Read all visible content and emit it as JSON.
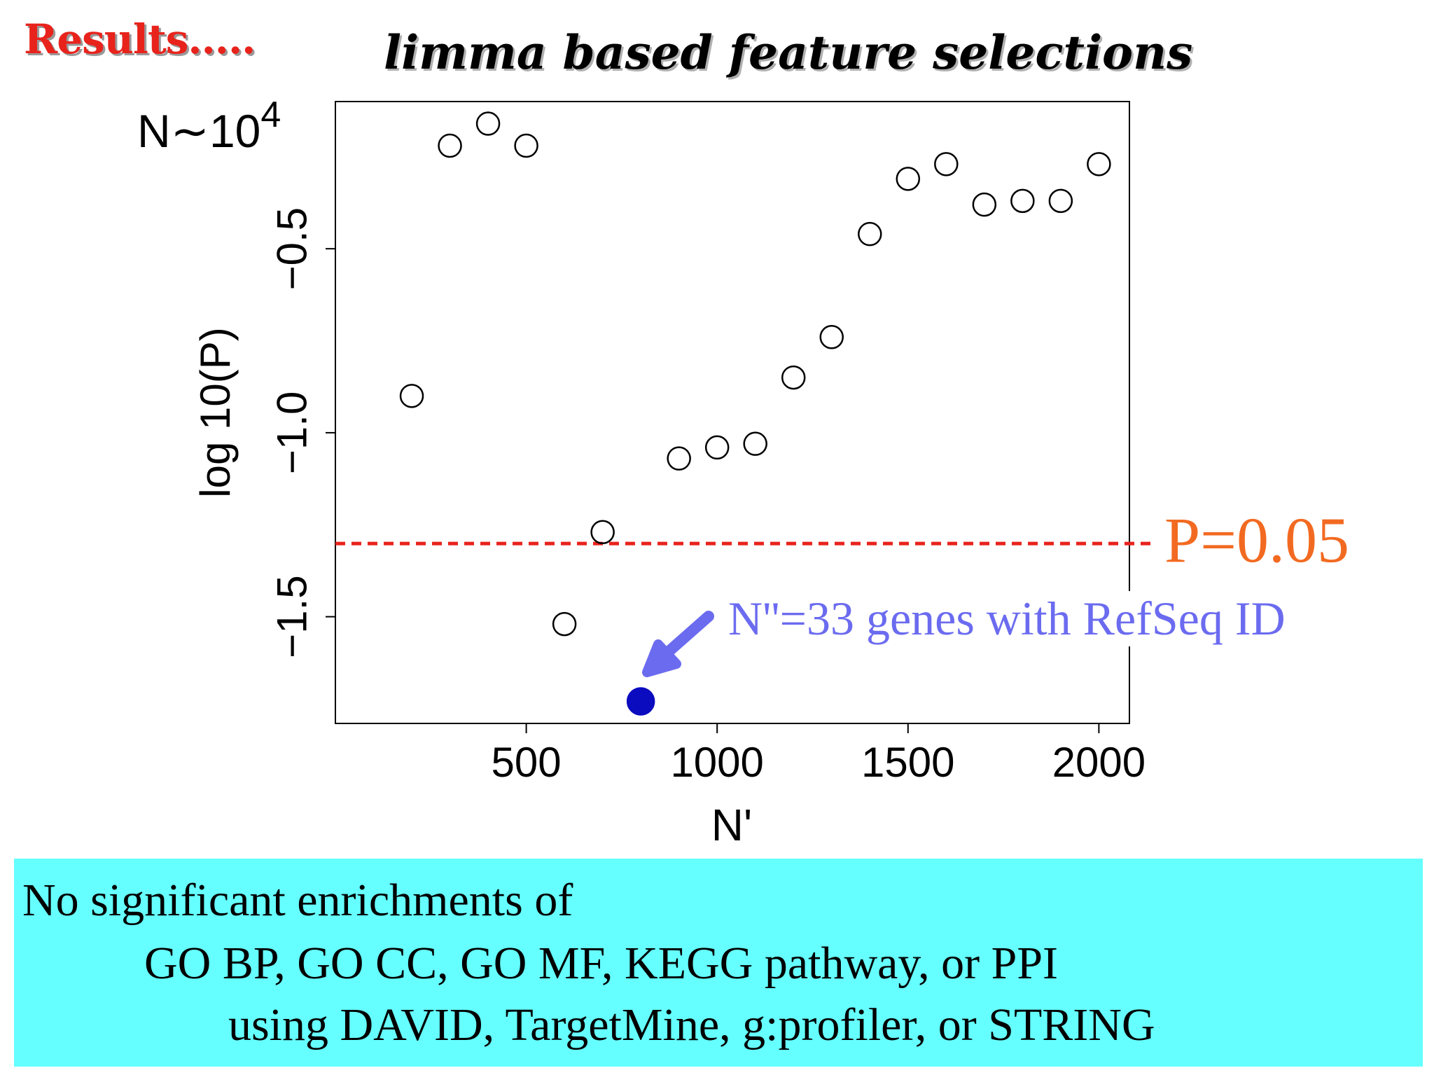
{
  "slide": {
    "title": "Results.....",
    "heading": "limma based feature selections",
    "n_note_base": "N∼10",
    "n_note_exp": "4"
  },
  "chart_data": {
    "type": "scatter",
    "title": "",
    "xlabel": "N'",
    "ylabel": "log 10(P)",
    "xlim": [
      0,
      2080
    ],
    "ylim": [
      -1.79,
      -0.1
    ],
    "xticks": [
      500,
      1000,
      1500,
      2000
    ],
    "xtick_labels": [
      "500",
      "1000",
      "1500",
      "2000"
    ],
    "yticks": [
      -1.5,
      -1.0,
      -0.5
    ],
    "ytick_labels": [
      "−1.5",
      "−1.0",
      "−0.5"
    ],
    "x": [
      200,
      300,
      400,
      500,
      600,
      700,
      800,
      900,
      1000,
      1100,
      1200,
      1300,
      1400,
      1500,
      1600,
      1700,
      1800,
      1900,
      2000
    ],
    "y": [
      -0.9,
      -0.22,
      -0.16,
      -0.22,
      -1.52,
      -1.27,
      -1.73,
      -1.07,
      -1.04,
      -1.03,
      -0.85,
      -0.74,
      -0.46,
      -0.31,
      -0.27,
      -0.38,
      -0.37,
      -0.37,
      -0.27
    ],
    "highlight": {
      "x": 800,
      "y": -1.73,
      "color": "#0b0bbf",
      "label": "N''=33 genes with RefSeq ID",
      "label_color": "#6b6bf0"
    },
    "threshold": {
      "y": -1.30103,
      "label": "P=0.05",
      "line_color": "#e8231c",
      "label_color": "#f26a21",
      "style": "dashed"
    },
    "grid": false,
    "marker": "open-circle"
  },
  "conclusion": {
    "line1": "No significant enrichments of",
    "line2": "GO BP, GO CC, GO MF, KEGG pathway, or PPI",
    "line3": "using DAVID, TargetMine, g:profiler,  or  STRING",
    "background": "#66ffff"
  }
}
